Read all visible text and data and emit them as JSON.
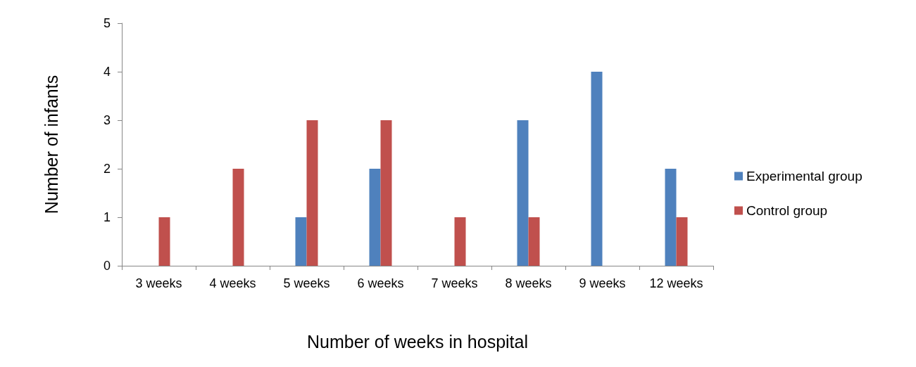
{
  "chart_data": {
    "type": "bar",
    "xlabel": "Number of weeks in hospital",
    "ylabel": "Number of infants",
    "categories": [
      "3 weeks",
      "4 weeks",
      "5 weeks",
      "6 weeks",
      "7 weeks",
      "8 weeks",
      "9 weeks",
      "12 weeks"
    ],
    "series": [
      {
        "name": "Experimental group",
        "color": "#4f81bd",
        "values": [
          0,
          0,
          1,
          2,
          0,
          3,
          4,
          2
        ]
      },
      {
        "name": "Control group",
        "color": "#c0504d",
        "values": [
          1,
          2,
          3,
          3,
          1,
          1,
          0,
          1
        ]
      }
    ],
    "ylim": [
      0,
      5
    ],
    "yticks": [
      0,
      1,
      2,
      3,
      4,
      5
    ],
    "grid": false,
    "legend": "right"
  }
}
